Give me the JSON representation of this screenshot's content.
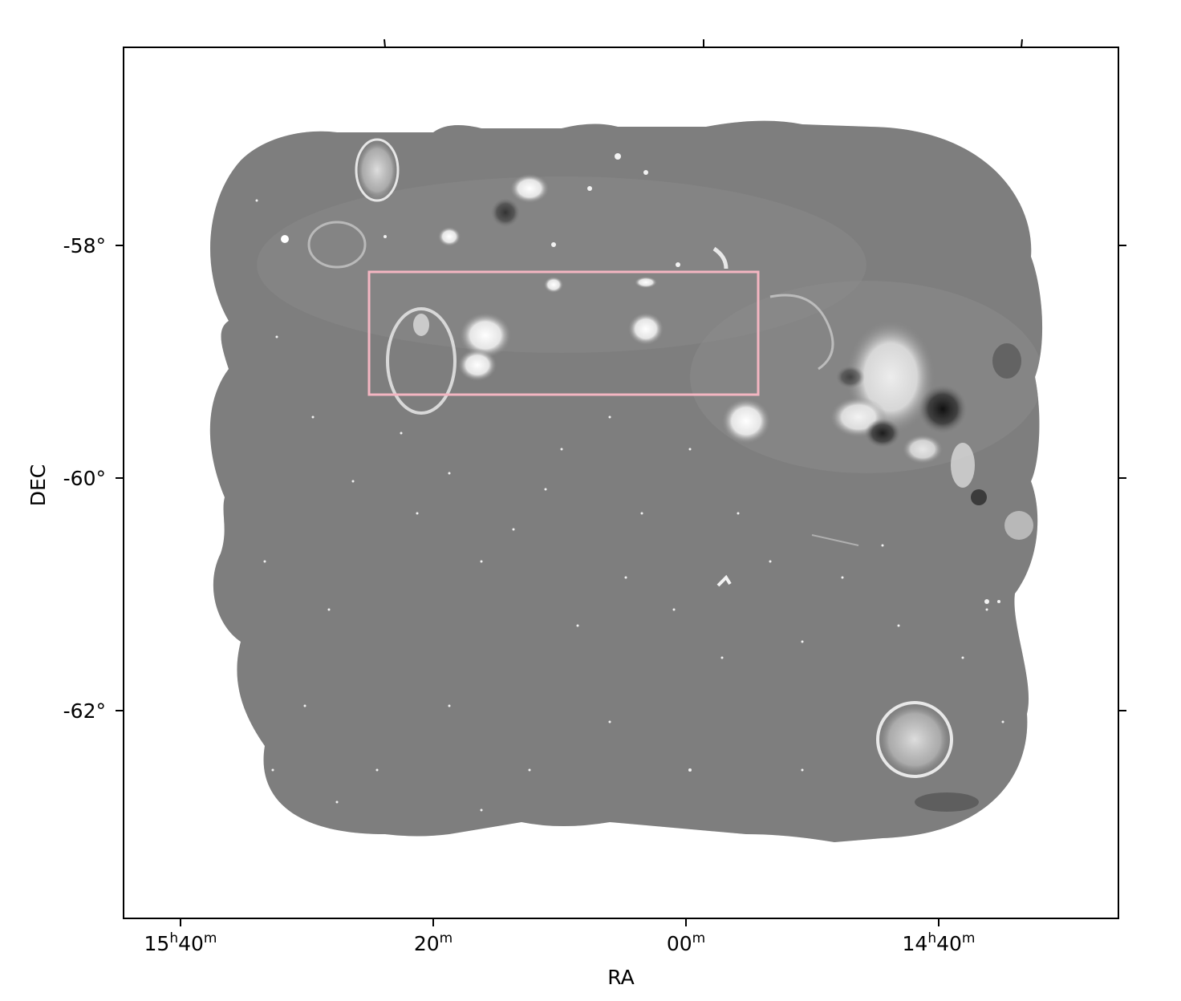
{
  "axes": {
    "xlabel": "RA",
    "ylabel": "DEC"
  },
  "ra_ticks": [
    {
      "hours": "15",
      "h_unit": "h",
      "minutes": "40",
      "m_unit": "m"
    },
    {
      "hours": "",
      "h_unit": "",
      "minutes": "20",
      "m_unit": "m"
    },
    {
      "hours": "",
      "h_unit": "",
      "minutes": "00",
      "m_unit": "m"
    },
    {
      "hours": "14",
      "h_unit": "h",
      "minutes": "40",
      "m_unit": "m"
    }
  ],
  "dec_ticks": [
    "-58°",
    "-60°",
    "-62°"
  ],
  "image": {
    "description_colormap": "grayscale",
    "background_color": "#808080",
    "frame_color": "#000000"
  },
  "highlight_box": {
    "color": "#f4b6c2"
  }
}
